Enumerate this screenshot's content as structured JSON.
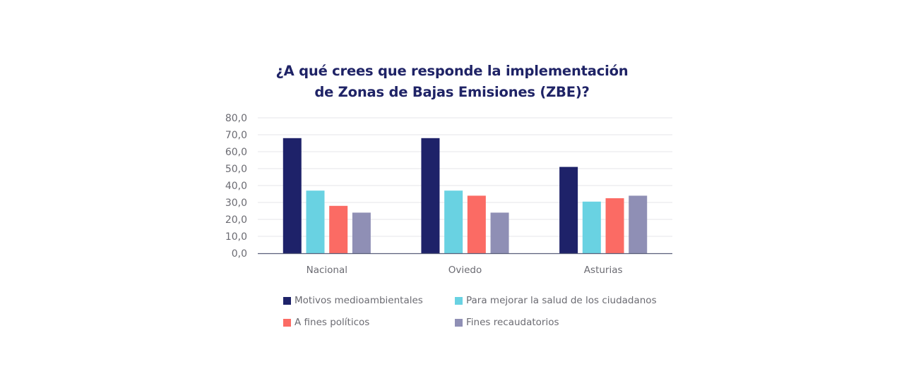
{
  "chart_data": {
    "type": "bar",
    "title": "¿A qué crees que responde la implementación de Zonas de Bajas Emisiones (ZBE)?",
    "title_lines": [
      "¿A qué crees que responde la implementación",
      "de Zonas de Bajas Emisiones (ZBE)?"
    ],
    "xlabel": "",
    "ylabel": "",
    "ylim": [
      0,
      80
    ],
    "yticks": [
      0,
      10,
      20,
      30,
      40,
      50,
      60,
      70,
      80
    ],
    "ytick_labels": [
      "0,0",
      "10,0",
      "20,0",
      "30,0",
      "40,0",
      "50,0",
      "60,0",
      "70,0",
      "80,0"
    ],
    "grid": true,
    "legend_position": "bottom",
    "categories": [
      "Nacional",
      "Oviedo",
      "Asturias"
    ],
    "series": [
      {
        "name": "Motivos medioambientales",
        "color": "#1e2269",
        "values": [
          68,
          68,
          51
        ]
      },
      {
        "name": "Para mejorar la salud de los ciudadanos",
        "color": "#69d2e2",
        "values": [
          37,
          37,
          30.5
        ]
      },
      {
        "name": "A fines políticos",
        "color": "#fb6b64",
        "values": [
          28,
          34,
          32.5
        ]
      },
      {
        "name": "Fines recaudatorios",
        "color": "#8f8fb5",
        "values": [
          24,
          24,
          34
        ]
      }
    ]
  }
}
